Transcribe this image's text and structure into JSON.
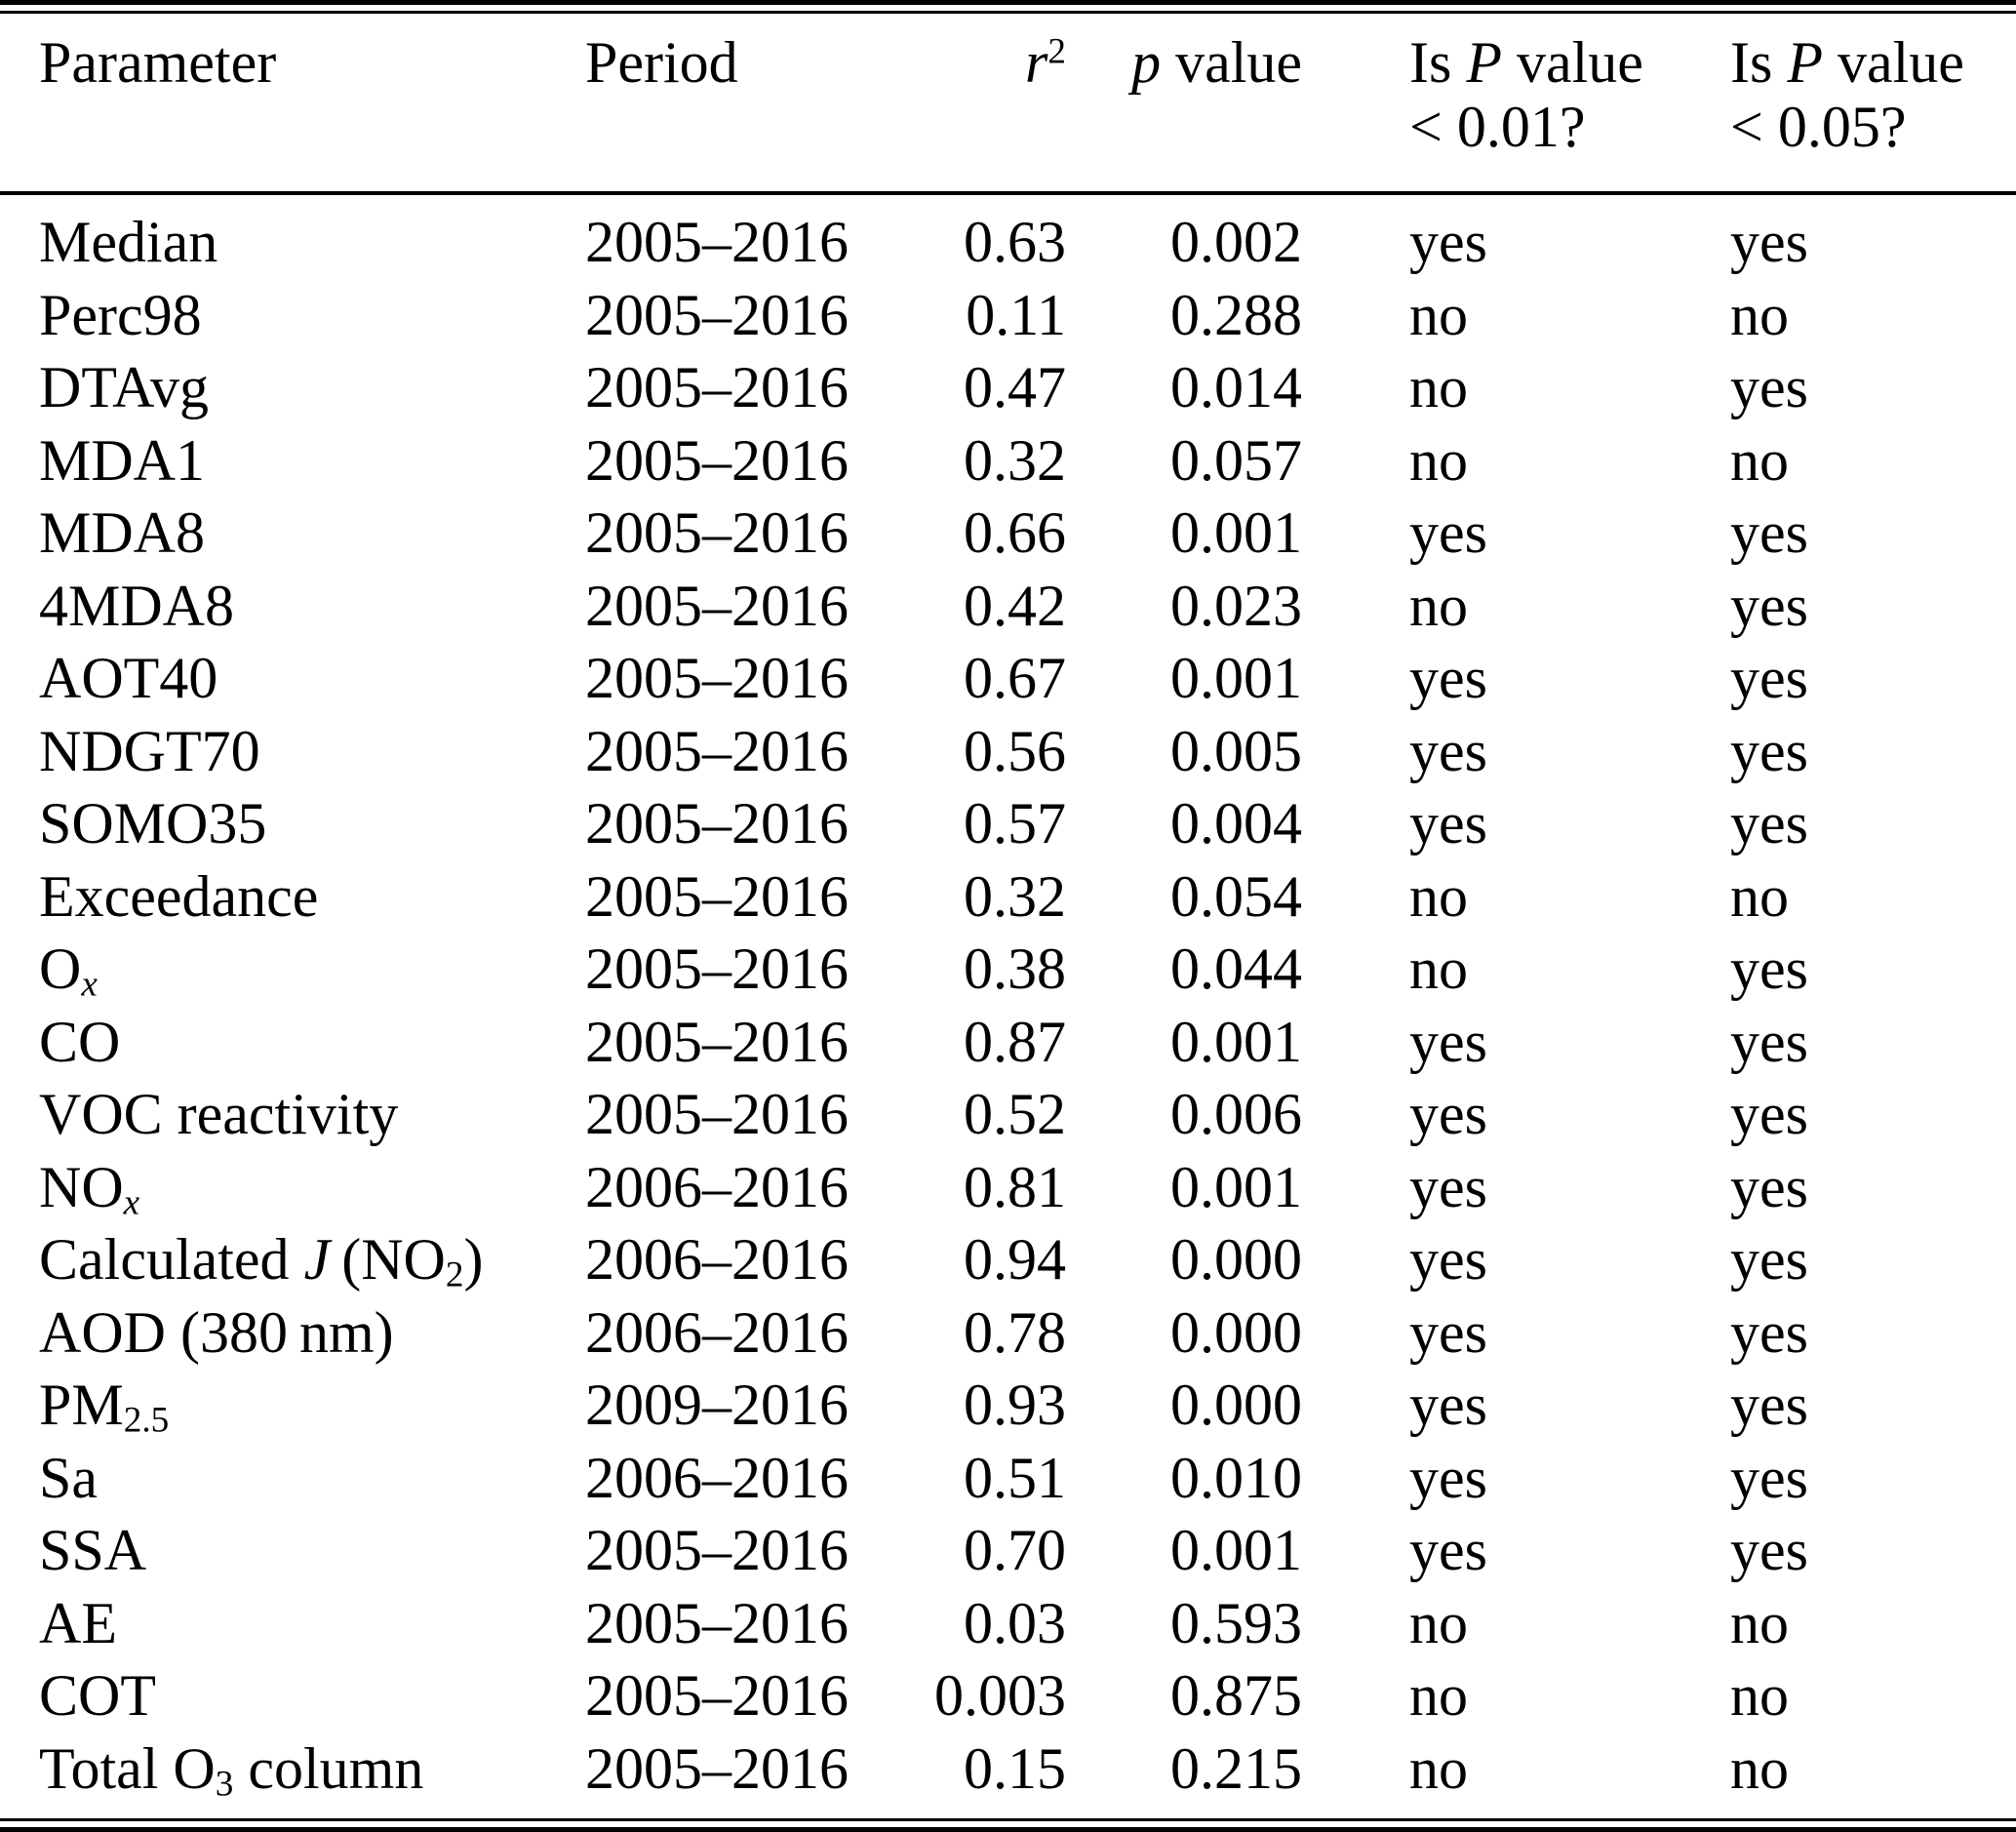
{
  "page": {
    "background_color": "#ffffff",
    "text_color": "#000000"
  },
  "table": {
    "columns": [
      {
        "id": "parameter",
        "align": "left",
        "header_lines": [
          [
            [
              "Parameter",
              ""
            ]
          ]
        ]
      },
      {
        "id": "period",
        "align": "left",
        "header_lines": [
          [
            [
              "Period",
              ""
            ]
          ]
        ]
      },
      {
        "id": "r2",
        "align": "right",
        "header_lines": [
          [
            [
              "r",
              "i"
            ],
            [
              "2",
              "sup"
            ]
          ]
        ]
      },
      {
        "id": "p_value",
        "align": "right",
        "header_lines": [
          [
            [
              "p",
              "i"
            ],
            [
              " value",
              ""
            ]
          ]
        ]
      },
      {
        "id": "p_lt_0_01",
        "align": "left",
        "header_lines": [
          [
            [
              "Is ",
              ""
            ],
            [
              "P",
              "i"
            ],
            [
              " value",
              ""
            ]
          ],
          [
            [
              "< 0.01?",
              ""
            ]
          ]
        ]
      },
      {
        "id": "p_lt_0_05",
        "align": "left",
        "header_lines": [
          [
            [
              "Is ",
              ""
            ],
            [
              "P",
              "i"
            ],
            [
              " value",
              ""
            ]
          ],
          [
            [
              "< 0.05?",
              ""
            ]
          ]
        ]
      }
    ],
    "rows": [
      {
        "parameter": [
          [
            "Median",
            ""
          ]
        ],
        "period": [
          [
            "2005–2016",
            ""
          ]
        ],
        "r2": [
          [
            "0.63",
            ""
          ]
        ],
        "p_value": [
          [
            "0.002",
            ""
          ]
        ],
        "p_lt_0_01": [
          [
            "yes",
            ""
          ]
        ],
        "p_lt_0_05": [
          [
            "yes",
            ""
          ]
        ]
      },
      {
        "parameter": [
          [
            "Perc98",
            ""
          ]
        ],
        "period": [
          [
            "2005–2016",
            ""
          ]
        ],
        "r2": [
          [
            "0.11",
            ""
          ]
        ],
        "p_value": [
          [
            "0.288",
            ""
          ]
        ],
        "p_lt_0_01": [
          [
            "no",
            ""
          ]
        ],
        "p_lt_0_05": [
          [
            "no",
            ""
          ]
        ]
      },
      {
        "parameter": [
          [
            "DTAvg",
            ""
          ]
        ],
        "period": [
          [
            "2005–2016",
            ""
          ]
        ],
        "r2": [
          [
            "0.47",
            ""
          ]
        ],
        "p_value": [
          [
            "0.014",
            ""
          ]
        ],
        "p_lt_0_01": [
          [
            "no",
            ""
          ]
        ],
        "p_lt_0_05": [
          [
            "yes",
            ""
          ]
        ]
      },
      {
        "parameter": [
          [
            "MDA1",
            ""
          ]
        ],
        "period": [
          [
            "2005–2016",
            ""
          ]
        ],
        "r2": [
          [
            "0.32",
            ""
          ]
        ],
        "p_value": [
          [
            "0.057",
            ""
          ]
        ],
        "p_lt_0_01": [
          [
            "no",
            ""
          ]
        ],
        "p_lt_0_05": [
          [
            "no",
            ""
          ]
        ]
      },
      {
        "parameter": [
          [
            "MDA8",
            ""
          ]
        ],
        "period": [
          [
            "2005–2016",
            ""
          ]
        ],
        "r2": [
          [
            "0.66",
            ""
          ]
        ],
        "p_value": [
          [
            "0.001",
            ""
          ]
        ],
        "p_lt_0_01": [
          [
            "yes",
            ""
          ]
        ],
        "p_lt_0_05": [
          [
            "yes",
            ""
          ]
        ]
      },
      {
        "parameter": [
          [
            "4MDA8",
            ""
          ]
        ],
        "period": [
          [
            "2005–2016",
            ""
          ]
        ],
        "r2": [
          [
            "0.42",
            ""
          ]
        ],
        "p_value": [
          [
            "0.023",
            ""
          ]
        ],
        "p_lt_0_01": [
          [
            "no",
            ""
          ]
        ],
        "p_lt_0_05": [
          [
            "yes",
            ""
          ]
        ]
      },
      {
        "parameter": [
          [
            "AOT40",
            ""
          ]
        ],
        "period": [
          [
            "2005–2016",
            ""
          ]
        ],
        "r2": [
          [
            "0.67",
            ""
          ]
        ],
        "p_value": [
          [
            "0.001",
            ""
          ]
        ],
        "p_lt_0_01": [
          [
            "yes",
            ""
          ]
        ],
        "p_lt_0_05": [
          [
            "yes",
            ""
          ]
        ]
      },
      {
        "parameter": [
          [
            "NDGT70",
            ""
          ]
        ],
        "period": [
          [
            "2005–2016",
            ""
          ]
        ],
        "r2": [
          [
            "0.56",
            ""
          ]
        ],
        "p_value": [
          [
            "0.005",
            ""
          ]
        ],
        "p_lt_0_01": [
          [
            "yes",
            ""
          ]
        ],
        "p_lt_0_05": [
          [
            "yes",
            ""
          ]
        ]
      },
      {
        "parameter": [
          [
            "SOMO35",
            ""
          ]
        ],
        "period": [
          [
            "2005–2016",
            ""
          ]
        ],
        "r2": [
          [
            "0.57",
            ""
          ]
        ],
        "p_value": [
          [
            "0.004",
            ""
          ]
        ],
        "p_lt_0_01": [
          [
            "yes",
            ""
          ]
        ],
        "p_lt_0_05": [
          [
            "yes",
            ""
          ]
        ]
      },
      {
        "parameter": [
          [
            "Exceedance",
            ""
          ]
        ],
        "period": [
          [
            "2005–2016",
            ""
          ]
        ],
        "r2": [
          [
            "0.32",
            ""
          ]
        ],
        "p_value": [
          [
            "0.054",
            ""
          ]
        ],
        "p_lt_0_01": [
          [
            "no",
            ""
          ]
        ],
        "p_lt_0_05": [
          [
            "no",
            ""
          ]
        ]
      },
      {
        "parameter": [
          [
            "O",
            ""
          ],
          [
            "x",
            "subi"
          ]
        ],
        "period": [
          [
            "2005–2016",
            ""
          ]
        ],
        "r2": [
          [
            "0.38",
            ""
          ]
        ],
        "p_value": [
          [
            "0.044",
            ""
          ]
        ],
        "p_lt_0_01": [
          [
            "no",
            ""
          ]
        ],
        "p_lt_0_05": [
          [
            "yes",
            ""
          ]
        ]
      },
      {
        "parameter": [
          [
            "CO",
            ""
          ]
        ],
        "period": [
          [
            "2005–2016",
            ""
          ]
        ],
        "r2": [
          [
            "0.87",
            ""
          ]
        ],
        "p_value": [
          [
            "0.001",
            ""
          ]
        ],
        "p_lt_0_01": [
          [
            "yes",
            ""
          ]
        ],
        "p_lt_0_05": [
          [
            "yes",
            ""
          ]
        ]
      },
      {
        "parameter": [
          [
            "VOC reactivity",
            ""
          ]
        ],
        "period": [
          [
            "2005–2016",
            ""
          ]
        ],
        "r2": [
          [
            "0.52",
            ""
          ]
        ],
        "p_value": [
          [
            "0.006",
            ""
          ]
        ],
        "p_lt_0_01": [
          [
            "yes",
            ""
          ]
        ],
        "p_lt_0_05": [
          [
            "yes",
            ""
          ]
        ]
      },
      {
        "parameter": [
          [
            "NO",
            ""
          ],
          [
            "x",
            "subi"
          ]
        ],
        "period": [
          [
            "2006–2016",
            ""
          ]
        ],
        "r2": [
          [
            "0.81",
            ""
          ]
        ],
        "p_value": [
          [
            "0.001",
            ""
          ]
        ],
        "p_lt_0_01": [
          [
            "yes",
            ""
          ]
        ],
        "p_lt_0_05": [
          [
            "yes",
            ""
          ]
        ]
      },
      {
        "parameter": [
          [
            "Calculated ",
            ""
          ],
          [
            "J",
            "i"
          ],
          [
            " (NO",
            ""
          ],
          [
            "2",
            "sub"
          ],
          [
            ")",
            ""
          ]
        ],
        "period": [
          [
            "2006–2016",
            ""
          ]
        ],
        "r2": [
          [
            "0.94",
            ""
          ]
        ],
        "p_value": [
          [
            "0.000",
            ""
          ]
        ],
        "p_lt_0_01": [
          [
            "yes",
            ""
          ]
        ],
        "p_lt_0_05": [
          [
            "yes",
            ""
          ]
        ]
      },
      {
        "parameter": [
          [
            "AOD (380 nm)",
            ""
          ]
        ],
        "period": [
          [
            "2006–2016",
            ""
          ]
        ],
        "r2": [
          [
            "0.78",
            ""
          ]
        ],
        "p_value": [
          [
            "0.000",
            ""
          ]
        ],
        "p_lt_0_01": [
          [
            "yes",
            ""
          ]
        ],
        "p_lt_0_05": [
          [
            "yes",
            ""
          ]
        ]
      },
      {
        "parameter": [
          [
            "PM",
            ""
          ],
          [
            "2.5",
            "sub"
          ]
        ],
        "period": [
          [
            "2009–2016",
            ""
          ]
        ],
        "r2": [
          [
            "0.93",
            ""
          ]
        ],
        "p_value": [
          [
            "0.000",
            ""
          ]
        ],
        "p_lt_0_01": [
          [
            "yes",
            ""
          ]
        ],
        "p_lt_0_05": [
          [
            "yes",
            ""
          ]
        ]
      },
      {
        "parameter": [
          [
            "Sa",
            ""
          ]
        ],
        "period": [
          [
            "2006–2016",
            ""
          ]
        ],
        "r2": [
          [
            "0.51",
            ""
          ]
        ],
        "p_value": [
          [
            "0.010",
            ""
          ]
        ],
        "p_lt_0_01": [
          [
            "yes",
            ""
          ]
        ],
        "p_lt_0_05": [
          [
            "yes",
            ""
          ]
        ]
      },
      {
        "parameter": [
          [
            "SSA",
            ""
          ]
        ],
        "period": [
          [
            "2005–2016",
            ""
          ]
        ],
        "r2": [
          [
            "0.70",
            ""
          ]
        ],
        "p_value": [
          [
            "0.001",
            ""
          ]
        ],
        "p_lt_0_01": [
          [
            "yes",
            ""
          ]
        ],
        "p_lt_0_05": [
          [
            "yes",
            ""
          ]
        ]
      },
      {
        "parameter": [
          [
            "AE",
            ""
          ]
        ],
        "period": [
          [
            "2005–2016",
            ""
          ]
        ],
        "r2": [
          [
            "0.03",
            ""
          ]
        ],
        "p_value": [
          [
            "0.593",
            ""
          ]
        ],
        "p_lt_0_01": [
          [
            "no",
            ""
          ]
        ],
        "p_lt_0_05": [
          [
            "no",
            ""
          ]
        ]
      },
      {
        "parameter": [
          [
            "COT",
            ""
          ]
        ],
        "period": [
          [
            "2005–2016",
            ""
          ]
        ],
        "r2": [
          [
            "0.003",
            ""
          ]
        ],
        "p_value": [
          [
            "0.875",
            ""
          ]
        ],
        "p_lt_0_01": [
          [
            "no",
            ""
          ]
        ],
        "p_lt_0_05": [
          [
            "no",
            ""
          ]
        ]
      },
      {
        "parameter": [
          [
            "Total O",
            ""
          ],
          [
            "3",
            "sub"
          ],
          [
            " column",
            ""
          ]
        ],
        "period": [
          [
            "2005–2016",
            ""
          ]
        ],
        "r2": [
          [
            "0.15",
            ""
          ]
        ],
        "p_value": [
          [
            "0.215",
            ""
          ]
        ],
        "p_lt_0_01": [
          [
            "no",
            ""
          ]
        ],
        "p_lt_0_05": [
          [
            "no",
            ""
          ]
        ]
      }
    ]
  }
}
